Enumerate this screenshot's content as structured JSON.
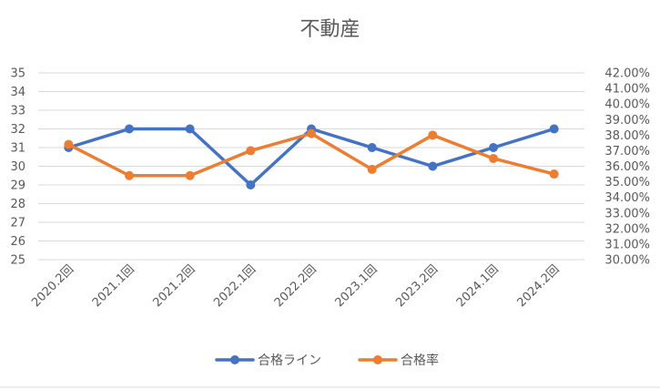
{
  "chart_data": {
    "type": "line",
    "title": "不動産",
    "categories": [
      "2020.2回",
      "2021.1回",
      "2021.2回",
      "2022.1回",
      "2022.2回",
      "2023.1回",
      "2023.2回",
      "2024.1回",
      "2024.2回"
    ],
    "series": [
      {
        "name": "合格ライン",
        "axis": "left",
        "color": "#4472C4",
        "values": [
          31,
          32,
          32,
          29,
          32,
          31,
          30,
          31,
          32
        ]
      },
      {
        "name": "合格率",
        "axis": "right",
        "color": "#ED7D31",
        "values": [
          0.374,
          0.354,
          0.354,
          0.37,
          0.381,
          0.358,
          0.38,
          0.365,
          0.355
        ]
      }
    ],
    "y_left": {
      "min": 25,
      "max": 35,
      "step": 1,
      "ticks": [
        "25",
        "26",
        "27",
        "28",
        "29",
        "30",
        "31",
        "32",
        "33",
        "34",
        "35"
      ]
    },
    "y_right": {
      "min": 0.3,
      "max": 0.42,
      "step": 0.01,
      "ticks": [
        "30.00%",
        "31.00%",
        "32.00%",
        "33.00%",
        "34.00%",
        "35.00%",
        "36.00%",
        "37.00%",
        "38.00%",
        "39.00%",
        "40.00%",
        "41.00%",
        "42.00%"
      ]
    },
    "grid": true,
    "legend_position": "bottom",
    "gridline_color": "#D9D9D9"
  }
}
